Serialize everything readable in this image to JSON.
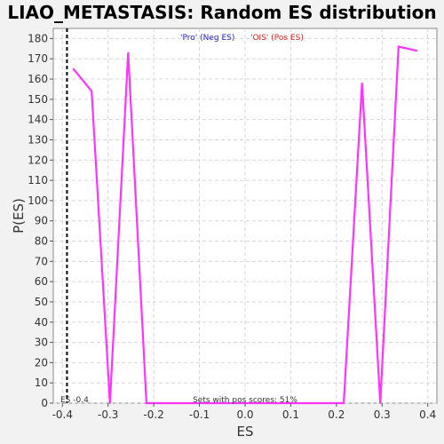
{
  "chart_data": {
    "type": "line",
    "title": "LIAO_METASTASIS: Random ES distribution",
    "xlabel": "ES",
    "ylabel": "P(ES)",
    "xlim": [
      -0.42,
      0.42
    ],
    "ylim": [
      0,
      185
    ],
    "xticks": [
      -0.4,
      -0.3,
      -0.2,
      -0.1,
      0.0,
      0.1,
      0.2,
      0.3,
      0.4
    ],
    "xtick_labels": [
      "-0.4",
      "-0.3",
      "-0.2",
      "-0.1",
      "0.0",
      "0.1",
      "0.2",
      "0.3",
      "0.4"
    ],
    "yticks": [
      0,
      10,
      20,
      30,
      40,
      50,
      60,
      70,
      80,
      90,
      100,
      110,
      120,
      130,
      140,
      150,
      160,
      170,
      180
    ],
    "ytick_labels": [
      "0",
      "10",
      "20",
      "30",
      "40",
      "50",
      "60",
      "70",
      "80",
      "90",
      "100",
      "110",
      "120",
      "130",
      "140",
      "150",
      "160",
      "170",
      "180"
    ],
    "grid": true,
    "legend": [
      {
        "label": "'Pro' (Neg ES)",
        "color": "#2222bb"
      },
      {
        "label": "'OIS' (Pos ES)",
        "color": "#dd2222"
      }
    ],
    "series": [
      {
        "color": "#ff33ff",
        "x": [
          -0.376,
          -0.336,
          -0.296,
          -0.256,
          -0.216,
          0.216,
          0.256,
          0.296,
          0.336,
          0.376
        ],
        "y": [
          165,
          154,
          0,
          173,
          0,
          0,
          158,
          0,
          176,
          174
        ]
      }
    ],
    "reference_line": {
      "x": -0.39,
      "label": "ES -0.4"
    },
    "annotation": "Sets with pos scores: 51%"
  }
}
